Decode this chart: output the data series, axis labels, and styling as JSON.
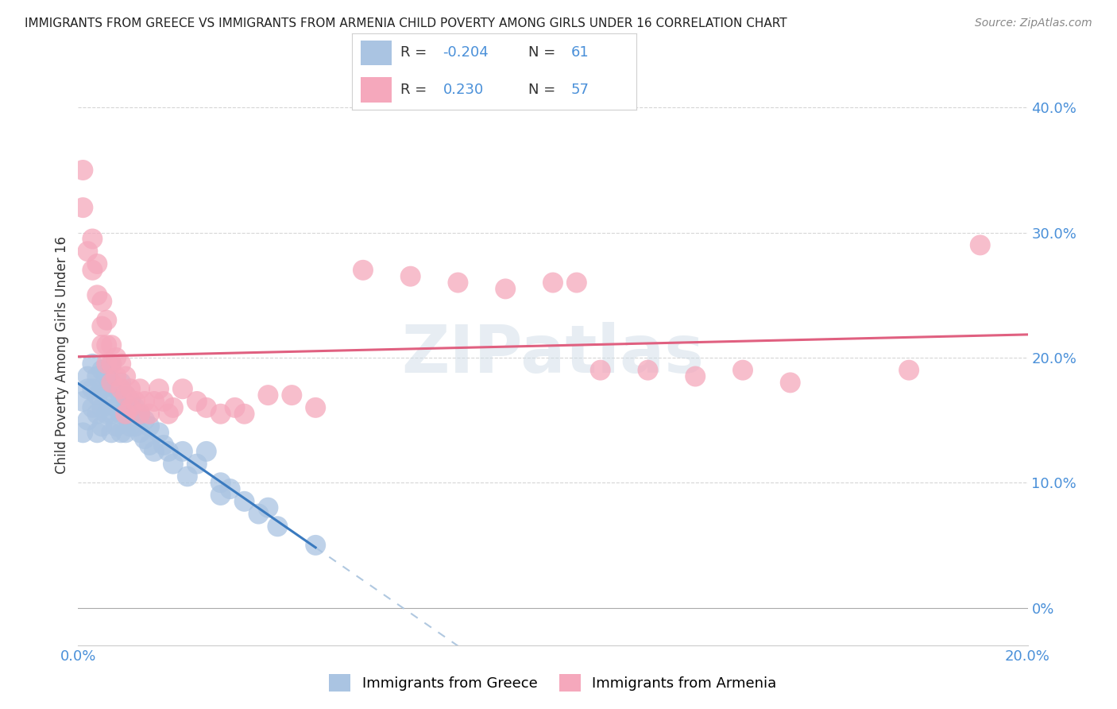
{
  "title": "IMMIGRANTS FROM GREECE VS IMMIGRANTS FROM ARMENIA CHILD POVERTY AMONG GIRLS UNDER 16 CORRELATION CHART",
  "source": "Source: ZipAtlas.com",
  "ylabel": "Child Poverty Among Girls Under 16",
  "right_ytick_vals": [
    0.0,
    0.1,
    0.2,
    0.3,
    0.4
  ],
  "right_ytick_labels": [
    "0%",
    "10.0%",
    "20.0%",
    "30.0%",
    "40.0%"
  ],
  "xlim": [
    0.0,
    0.2
  ],
  "ylim": [
    -0.03,
    0.435
  ],
  "greece_color": "#aac4e2",
  "armenia_color": "#f5a8bc",
  "greece_line_color": "#3a7abf",
  "armenia_line_color": "#e06080",
  "dash_line_color": "#b0c8e0",
  "greece_R": -0.204,
  "greece_N": 61,
  "armenia_R": 0.23,
  "armenia_N": 57,
  "background_color": "#ffffff",
  "grid_color": "#cccccc",
  "watermark": "ZIPatlas",
  "greece_points_x": [
    0.001,
    0.001,
    0.002,
    0.002,
    0.002,
    0.003,
    0.003,
    0.003,
    0.004,
    0.004,
    0.004,
    0.004,
    0.005,
    0.005,
    0.005,
    0.005,
    0.006,
    0.006,
    0.006,
    0.007,
    0.007,
    0.007,
    0.007,
    0.007,
    0.008,
    0.008,
    0.008,
    0.009,
    0.009,
    0.009,
    0.009,
    0.01,
    0.01,
    0.01,
    0.011,
    0.011,
    0.012,
    0.012,
    0.013,
    0.013,
    0.014,
    0.014,
    0.015,
    0.015,
    0.016,
    0.017,
    0.018,
    0.019,
    0.02,
    0.022,
    0.023,
    0.025,
    0.027,
    0.03,
    0.03,
    0.032,
    0.035,
    0.038,
    0.04,
    0.042,
    0.05
  ],
  "greece_points_y": [
    0.165,
    0.14,
    0.175,
    0.15,
    0.185,
    0.195,
    0.175,
    0.16,
    0.17,
    0.185,
    0.155,
    0.14,
    0.19,
    0.175,
    0.16,
    0.145,
    0.185,
    0.17,
    0.155,
    0.195,
    0.18,
    0.165,
    0.155,
    0.14,
    0.175,
    0.16,
    0.145,
    0.18,
    0.17,
    0.155,
    0.14,
    0.17,
    0.155,
    0.14,
    0.165,
    0.145,
    0.16,
    0.145,
    0.155,
    0.14,
    0.15,
    0.135,
    0.145,
    0.13,
    0.125,
    0.14,
    0.13,
    0.125,
    0.115,
    0.125,
    0.105,
    0.115,
    0.125,
    0.1,
    0.09,
    0.095,
    0.085,
    0.075,
    0.08,
    0.065,
    0.05
  ],
  "armenia_points_x": [
    0.001,
    0.001,
    0.002,
    0.003,
    0.003,
    0.004,
    0.004,
    0.005,
    0.005,
    0.005,
    0.006,
    0.006,
    0.006,
    0.007,
    0.007,
    0.007,
    0.008,
    0.008,
    0.009,
    0.009,
    0.01,
    0.01,
    0.01,
    0.011,
    0.011,
    0.012,
    0.013,
    0.013,
    0.014,
    0.015,
    0.016,
    0.017,
    0.018,
    0.019,
    0.02,
    0.022,
    0.025,
    0.027,
    0.03,
    0.033,
    0.035,
    0.04,
    0.045,
    0.05,
    0.06,
    0.07,
    0.08,
    0.09,
    0.1,
    0.105,
    0.11,
    0.12,
    0.13,
    0.14,
    0.15,
    0.175,
    0.19
  ],
  "armenia_points_y": [
    0.35,
    0.32,
    0.285,
    0.295,
    0.27,
    0.275,
    0.25,
    0.245,
    0.225,
    0.21,
    0.23,
    0.21,
    0.195,
    0.21,
    0.195,
    0.18,
    0.2,
    0.185,
    0.195,
    0.175,
    0.185,
    0.17,
    0.155,
    0.175,
    0.16,
    0.165,
    0.175,
    0.155,
    0.165,
    0.155,
    0.165,
    0.175,
    0.165,
    0.155,
    0.16,
    0.175,
    0.165,
    0.16,
    0.155,
    0.16,
    0.155,
    0.17,
    0.17,
    0.16,
    0.27,
    0.265,
    0.26,
    0.255,
    0.26,
    0.26,
    0.19,
    0.19,
    0.185,
    0.19,
    0.18,
    0.19,
    0.29
  ]
}
